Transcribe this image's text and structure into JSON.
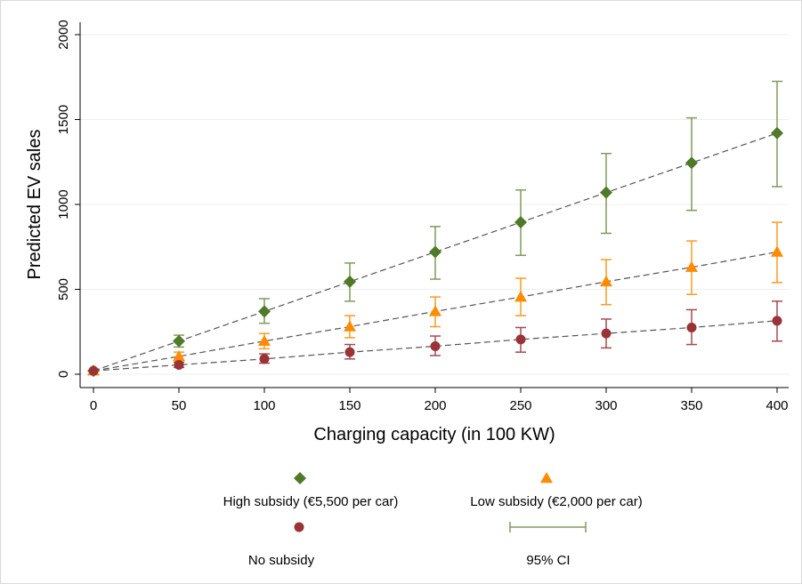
{
  "chart_data": {
    "type": "scatter",
    "xlabel": "Charging capacity (in 100 KW)",
    "ylabel": "Predicted EV sales",
    "xlim": [
      0,
      400
    ],
    "ylim": [
      0,
      2000
    ],
    "x_ticks": [
      "0",
      "50",
      "100",
      "150",
      "200",
      "250",
      "300",
      "350",
      "400"
    ],
    "y_ticks": [
      "0",
      "500",
      "1000",
      "1500",
      "2000"
    ],
    "grid": true,
    "legend_position": "bottom",
    "series": [
      {
        "name": "High subsidy (€5,500 per car)",
        "marker": "diamond",
        "color": "#4f7a28",
        "ci_color": "#7f9a5c",
        "x": [
          0,
          50,
          100,
          150,
          200,
          250,
          300,
          350,
          400
        ],
        "y": [
          20,
          195,
          370,
          545,
          720,
          895,
          1070,
          1245,
          1420
        ],
        "ci_low": [
          20,
          160,
          300,
          430,
          560,
          700,
          830,
          965,
          1105
        ],
        "ci_high": [
          20,
          230,
          445,
          655,
          870,
          1085,
          1300,
          1510,
          1725
        ]
      },
      {
        "name": "Low subsidy (€2,000 per car)",
        "marker": "triangle",
        "color": "#ff8c00",
        "ci_color": "#ff9a1f",
        "x": [
          0,
          50,
          100,
          150,
          200,
          250,
          300,
          350,
          400
        ],
        "y": [
          20,
          105,
          195,
          280,
          370,
          455,
          545,
          630,
          720
        ],
        "ci_low": [
          20,
          80,
          150,
          215,
          280,
          345,
          410,
          470,
          540
        ],
        "ci_high": [
          20,
          130,
          240,
          345,
          455,
          565,
          675,
          785,
          895
        ]
      },
      {
        "name": "No subsidy",
        "marker": "circle",
        "color": "#9a3336",
        "ci_color": "#a34a4f",
        "x": [
          0,
          50,
          100,
          150,
          200,
          250,
          300,
          350,
          400
        ],
        "y": [
          20,
          55,
          90,
          130,
          165,
          205,
          240,
          275,
          315
        ],
        "ci_low": [
          20,
          40,
          65,
          90,
          110,
          130,
          155,
          175,
          195
        ],
        "ci_high": [
          20,
          70,
          120,
          175,
          225,
          275,
          325,
          380,
          430
        ]
      }
    ],
    "legend": {
      "ci_label": "95% CI"
    }
  }
}
